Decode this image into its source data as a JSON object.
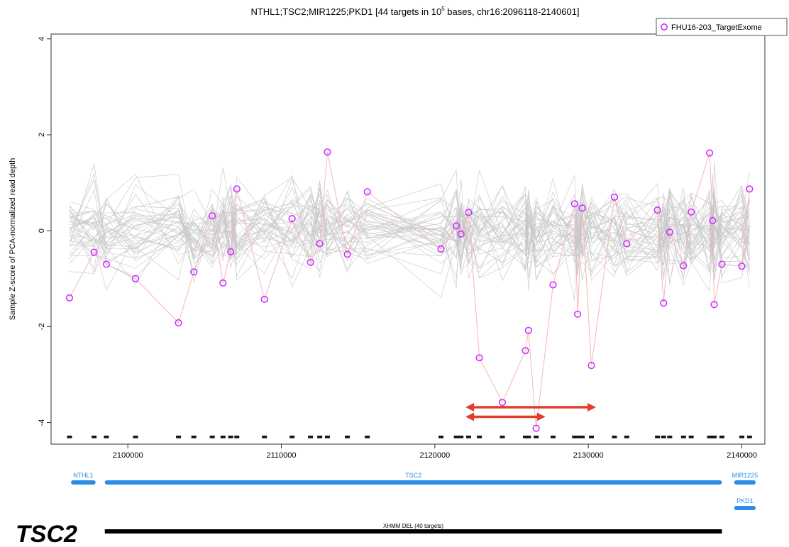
{
  "chart_data": {
    "type": "line",
    "title": "NTHL1;TSC2;MIR1225;PKD1 [44 targets in 10",
    "title_exp": "5",
    "title_tail": " bases, chr16:2096118-2140601]",
    "ylabel": "Sample Z-score of PCA-normalized read depth",
    "xlabel": "",
    "xlim": [
      2095000,
      2141500
    ],
    "ylim": [
      -4.45,
      4.1
    ],
    "xticks": [
      2100000,
      2110000,
      2120000,
      2130000,
      2140000
    ],
    "xtick_labels": [
      "2100000",
      "2110000",
      "2120000",
      "2130000",
      "2140000"
    ],
    "yticks": [
      -4,
      -2,
      0,
      2,
      4
    ],
    "ytick_labels": [
      "-4",
      "-2",
      "0",
      "2",
      "4"
    ],
    "legend": {
      "position": "top-right",
      "entry": "FHU16-203_TargetExome",
      "color": "#cc33ff"
    },
    "highlight_series": {
      "name": "FHU16-203_TargetExome",
      "color": "#cc33ff",
      "x": [
        2096200,
        2097800,
        2098600,
        2100500,
        2103300,
        2104300,
        2105500,
        2106200,
        2106700,
        2107100,
        2108900,
        2110700,
        2111900,
        2112500,
        2113000,
        2114300,
        2115600,
        2120400,
        2121400,
        2121700,
        2122200,
        2122900,
        2124400,
        2125900,
        2126100,
        2126600,
        2127700,
        2129100,
        2129300,
        2129600,
        2130200,
        2131700,
        2132500,
        2134500,
        2134900,
        2135300,
        2136200,
        2136700,
        2137900,
        2138100,
        2138200,
        2138700,
        2140000,
        2140500
      ],
      "y": [
        -1.4,
        -0.45,
        -0.7,
        -1.0,
        -1.92,
        -0.86,
        0.31,
        -1.09,
        -0.44,
        0.87,
        -1.43,
        0.25,
        -0.66,
        -0.27,
        1.64,
        -0.49,
        0.81,
        -0.38,
        0.1,
        -0.07,
        0.38,
        -2.65,
        -3.58,
        -2.5,
        -2.08,
        -4.12,
        -1.13,
        0.56,
        -1.74,
        0.47,
        -2.81,
        0.7,
        -0.27,
        0.43,
        -1.51,
        -0.03,
        -0.73,
        0.39,
        1.62,
        0.21,
        -1.54,
        -0.7,
        -0.74,
        0.87
      ]
    },
    "background_series_count": 40,
    "background_color": "#c8c8c8",
    "connector_color": "#f2b8b8",
    "target_marker_y": -4.3,
    "arrows": [
      {
        "x_from": 2122000,
        "x_to": 2130500,
        "y": -3.68,
        "color": "#e33b2c"
      },
      {
        "x_from": 2122000,
        "x_to": 2127200,
        "y": -3.88,
        "color": "#e33b2c"
      }
    ],
    "genes": [
      {
        "name": "NTHL1",
        "start": 2096300,
        "end": 2097900,
        "row": 0
      },
      {
        "name": "TSC2",
        "start": 2098500,
        "end": 2138700,
        "row": 0
      },
      {
        "name": "MIR1225",
        "start": 2139500,
        "end": 2140900,
        "row": 0
      },
      {
        "name": "PKD1",
        "start": 2139500,
        "end": 2140900,
        "row": 1
      }
    ],
    "cnv_call": {
      "label": "XHMM DEL (40 targets)",
      "start": 2098500,
      "end": 2138700,
      "color": "#000000"
    },
    "side_label": "TSC2"
  }
}
